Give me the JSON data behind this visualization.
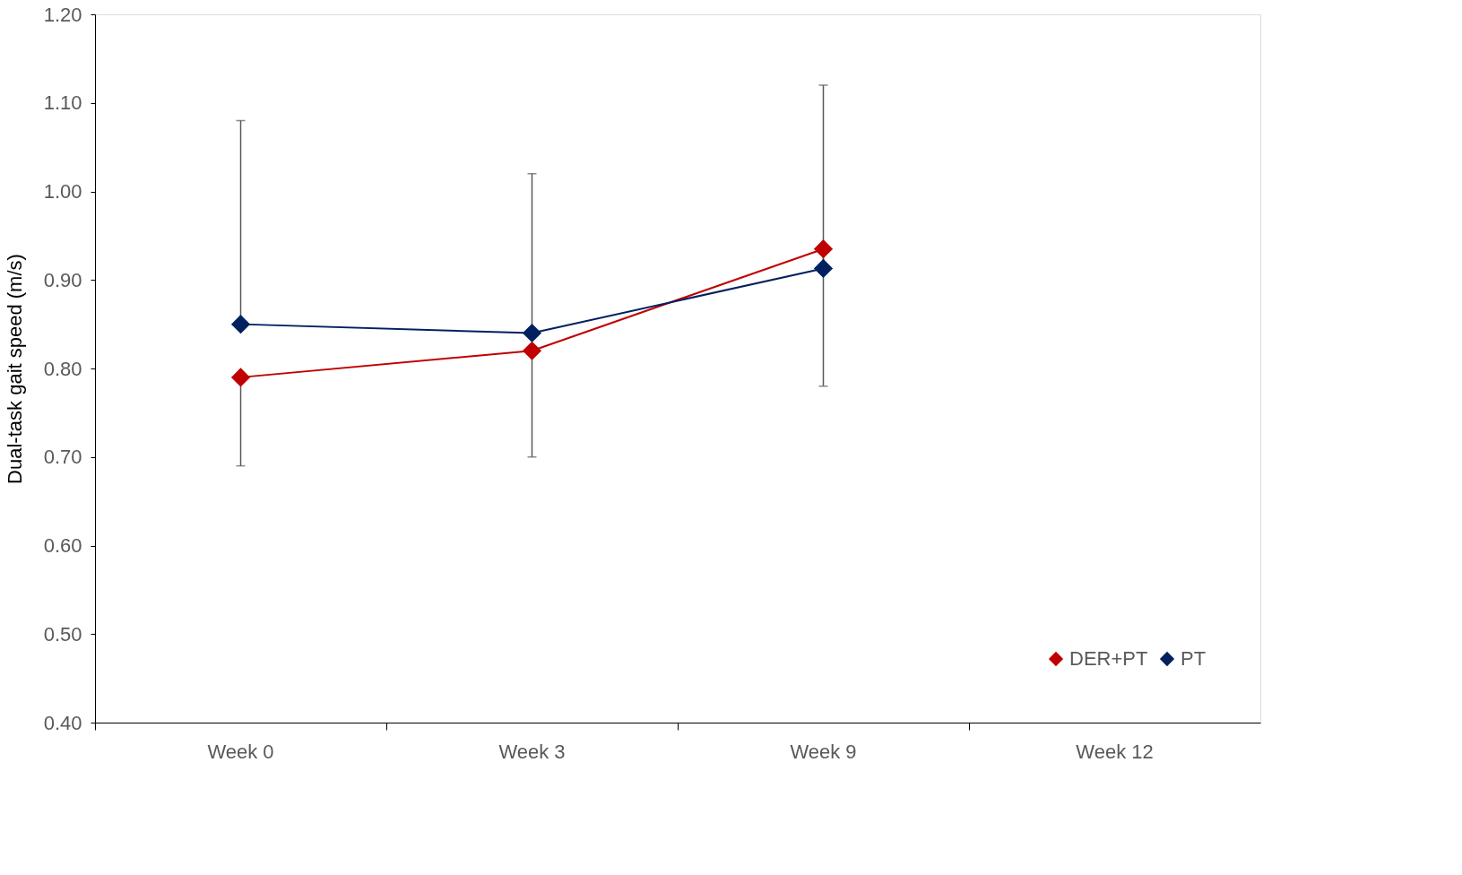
{
  "chart_data": {
    "type": "line",
    "ylabel": "Dual-task gait speed (m/s)",
    "categories": [
      "Week 0",
      "Week 3",
      "Week 9",
      "Week 12"
    ],
    "series": [
      {
        "name": "DER+PT",
        "color": "#c00000",
        "values": [
          0.79,
          0.82,
          0.935,
          null
        ],
        "errors": [
          [
            0.69,
            0.79
          ],
          [
            0.7,
            0.82
          ],
          [
            0.78,
            0.935
          ],
          null
        ]
      },
      {
        "name": "PT",
        "color": "#002060",
        "values": [
          0.85,
          0.84,
          0.913,
          null
        ],
        "errors": [
          [
            0.85,
            1.08
          ],
          [
            0.84,
            1.02
          ],
          [
            0.913,
            1.12
          ],
          null
        ]
      }
    ],
    "ylim": [
      0.4,
      1.2
    ],
    "yticks": [
      {
        "value": 0.4,
        "label": "0.40"
      },
      {
        "value": 0.5,
        "label": "0.50"
      },
      {
        "value": 0.6,
        "label": "0.60"
      },
      {
        "value": 0.7,
        "label": "0.70"
      },
      {
        "value": 0.8,
        "label": "0.80"
      },
      {
        "value": 0.9,
        "label": "0.90"
      },
      {
        "value": 1.0,
        "label": "1.00"
      },
      {
        "value": 1.1,
        "label": "1.10"
      },
      {
        "value": 1.2,
        "label": "1.20"
      }
    ],
    "marker": "diamond",
    "line_style": "solid",
    "grid": false,
    "legend": "bottom right"
  }
}
